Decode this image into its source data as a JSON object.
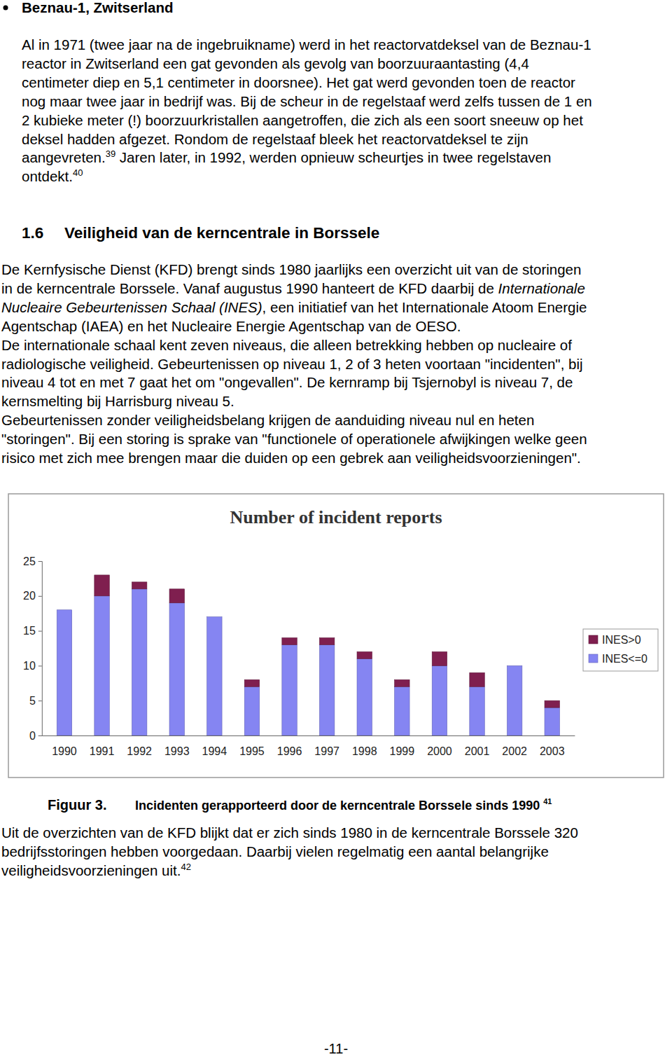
{
  "document": {
    "bullet_heading": "Beznau-1, Zwitserland",
    "paragraph_1": [
      [
        {
          "text": "Al in 1971 (twee jaar na de ingebruikname) werd in het reactorvatdeksel van de Beznau-1"
        }
      ],
      [
        {
          "text": "reactor in Zwitserland een gat gevonden als gevolg van boorzuuraantasting (4,4"
        }
      ],
      [
        {
          "text": "centimeter diep en 5,1 centimeter in doorsnee). Het gat werd gevonden toen de reactor"
        }
      ],
      [
        {
          "text": "nog maar twee jaar in bedrijf was. Bij de scheur in de regelstaaf werd zelfs tussen de 1 en"
        }
      ],
      [
        {
          "text": "2 kubieke meter (!) boorzuurkristallen aangetroffen, die zich als een soort sneeuw op het"
        }
      ],
      [
        {
          "text": "deksel hadden afgezet. Rondom de regelstaaf bleek het reactorvatdeksel te zijn"
        }
      ],
      [
        {
          "text": "aangevreten."
        },
        {
          "text": "39",
          "style": "sup"
        },
        {
          "text": " Jaren later, in 1992, werden opnieuw scheurtjes in twee regelstaven"
        }
      ],
      [
        {
          "text": "ontdekt."
        },
        {
          "text": "40",
          "style": "sup"
        }
      ]
    ],
    "section_number": "1.6",
    "section_title": "Veiligheid van de kerncentrale in Borssele",
    "paragraph_2": [
      [
        {
          "text": "De Kernfysische Dienst (KFD) brengt sinds 1980 jaarlijks een overzicht uit van de storingen"
        }
      ],
      [
        {
          "text": "in de kerncentrale Borssele. Vanaf augustus 1990 hanteert de KFD daarbij de "
        },
        {
          "text": "Internationale",
          "style": "italic"
        }
      ],
      [
        {
          "text": "Nucleaire Gebeurtenissen Schaal (INES)",
          "style": "italic"
        },
        {
          "text": ", een initiatief van het Internationale Atoom Energie"
        }
      ],
      [
        {
          "text": "Agentschap (IAEA) en het Nucleaire Energie Agentschap van de OESO."
        }
      ],
      [
        {
          "text": "De internationale schaal kent zeven niveaus, die alleen betrekking hebben op nucleaire of"
        }
      ],
      [
        {
          "text": "radiologische veiligheid. Gebeurtenissen op niveau 1, 2 of 3 heten voortaan \"incidenten\", bij"
        }
      ],
      [
        {
          "text": "niveau 4 tot en met 7 gaat het om \"ongevallen\". De kernramp bij Tsjernobyl is niveau 7, de"
        }
      ],
      [
        {
          "text": "kernsmelting bij Harrisburg niveau 5."
        }
      ],
      [
        {
          "text": "Gebeurtenissen zonder veiligheidsbelang krijgen de aanduiding niveau nul en heten"
        }
      ],
      [
        {
          "text": "\"storingen\". Bij een storing is sprake van \"functionele of operationele afwijkingen welke geen"
        }
      ],
      [
        {
          "text": "risico met zich mee brengen maar die duiden op een gebrek aan veiligheidsvoorzieningen\"."
        }
      ]
    ],
    "figure_label": "Figuur 3.",
    "figure_caption": [
      {
        "text": "Incidenten gerapporteerd door de kerncentrale Borssele sinds 1990 "
      },
      {
        "text": "41",
        "style": "sup"
      }
    ],
    "paragraph_3": [
      [
        {
          "text": "Uit de overzichten van de KFD blijkt dat er zich sinds 1980 in de kerncentrale Borssele 320"
        }
      ],
      [
        {
          "text": "bedrijfsstoringen hebben voorgedaan. Daarbij vielen regelmatig een aantal belangrijke"
        }
      ],
      [
        {
          "text": "veiligheidsvoorzieningen uit."
        },
        {
          "text": "42",
          "style": "sup"
        }
      ]
    ],
    "page_number": "-11-"
  },
  "chart_data": {
    "type": "bar",
    "title": "Number of incident reports",
    "categories": [
      "1990",
      "1991",
      "1992",
      "1993",
      "1994",
      "1995",
      "1996",
      "1997",
      "1998",
      "1999",
      "2000",
      "2001",
      "2002",
      "2003"
    ],
    "series": [
      {
        "name": "INES<=0",
        "color": "#8585f2",
        "values": [
          18,
          20,
          21,
          19,
          17,
          7,
          13,
          13,
          11,
          7,
          10,
          7,
          10,
          4
        ]
      },
      {
        "name": "INES>0",
        "color": "#7f1f4f",
        "values": [
          0,
          3,
          1,
          2,
          0,
          1,
          1,
          1,
          1,
          1,
          2,
          2,
          0,
          1
        ]
      }
    ],
    "ylim": [
      0,
      25
    ],
    "yticks": [
      0,
      5,
      10,
      15,
      20,
      25
    ],
    "stacked": true,
    "grid": false,
    "legend": "right"
  }
}
